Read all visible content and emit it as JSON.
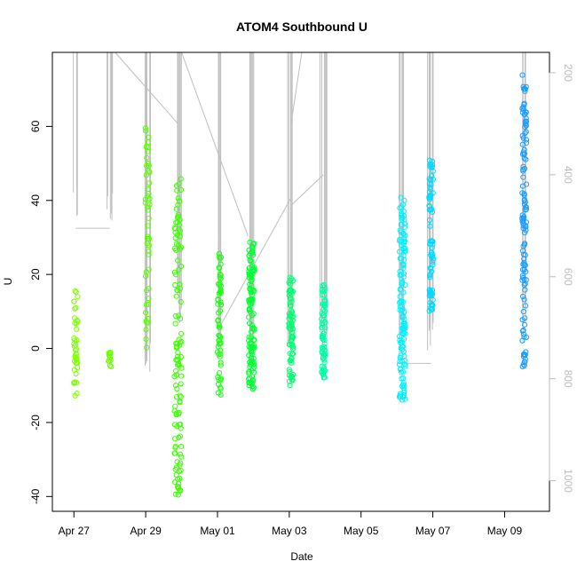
{
  "chart_data": {
    "type": "scatter",
    "title": "ATOM4 Southbound U",
    "xlabel": "Date",
    "ylabel": "U",
    "right_axis_label": "",
    "x_ticks": [
      "Apr 27",
      "Apr 29",
      "May 01",
      "May 03",
      "May 05",
      "May 07",
      "May 09"
    ],
    "x_tick_day_index": [
      0,
      2,
      4,
      6,
      8,
      10,
      12
    ],
    "y_ticks": [
      -40,
      -20,
      0,
      20,
      40,
      60
    ],
    "right_ticks": [
      200,
      400,
      600,
      800,
      1000
    ],
    "xlim_day_index": [
      -0.6,
      13.25
    ],
    "ylim": [
      -44,
      80
    ],
    "right_ylim": [
      160,
      1060
    ],
    "grid": false,
    "colors": {
      "line": "#bfbfbf",
      "axis": "#000000",
      "right_axis": "#bdbdbd"
    },
    "clusters": [
      {
        "day_index": 0.05,
        "spread": 0.06,
        "ymin": -13,
        "ymax": 16,
        "n": 40,
        "color": "#7fff00"
      },
      {
        "day_index": 1.0,
        "spread": 0.04,
        "ymin": -5,
        "ymax": -1,
        "n": 12,
        "color": "#6cff00"
      },
      {
        "day_index": 2.05,
        "spread": 0.06,
        "ymin": 0,
        "ymax": 60,
        "n": 50,
        "color": "#58ff00"
      },
      {
        "day_index": 2.9,
        "spread": 0.1,
        "ymin": -40,
        "ymax": 46,
        "n": 120,
        "color": "#3aff00"
      },
      {
        "day_index": 4.05,
        "spread": 0.05,
        "ymin": -13,
        "ymax": 26,
        "n": 60,
        "color": "#18ff10"
      },
      {
        "day_index": 4.95,
        "spread": 0.08,
        "ymin": -11,
        "ymax": 30,
        "n": 120,
        "color": "#00ff30"
      },
      {
        "day_index": 6.05,
        "spread": 0.06,
        "ymin": -10,
        "ymax": 20,
        "n": 80,
        "color": "#00ff70"
      },
      {
        "day_index": 6.95,
        "spread": 0.05,
        "ymin": -8,
        "ymax": 18,
        "n": 70,
        "color": "#00ffa0"
      },
      {
        "day_index": 9.15,
        "spread": 0.08,
        "ymin": -14,
        "ymax": 41,
        "n": 130,
        "color": "#00f0ff"
      },
      {
        "day_index": 9.95,
        "spread": 0.06,
        "ymin": 10,
        "ymax": 51,
        "n": 80,
        "color": "#00d8ff"
      },
      {
        "day_index": 12.55,
        "spread": 0.06,
        "ymin": -5,
        "ymax": 75,
        "n": 120,
        "color": "#1a9cff"
      }
    ],
    "depth_line_segments": [
      {
        "day_index": 0.05,
        "depth_min": 160,
        "depth_max": 505
      },
      {
        "day_index": 1.0,
        "depth_min": 160,
        "depth_max": 505
      },
      {
        "day_index": 2.05,
        "depth_min": 160,
        "depth_max": 800
      },
      {
        "day_index": 2.9,
        "depth_min": 160,
        "depth_max": 700
      },
      {
        "day_index": 4.05,
        "depth_min": 160,
        "depth_max": 740
      },
      {
        "day_index": 4.95,
        "depth_min": 160,
        "depth_max": 760
      },
      {
        "day_index": 6.05,
        "depth_min": 160,
        "depth_max": 770
      },
      {
        "day_index": 6.95,
        "depth_min": 160,
        "depth_max": 760
      },
      {
        "day_index": 9.15,
        "depth_min": 160,
        "depth_max": 770
      },
      {
        "day_index": 9.95,
        "depth_min": 160,
        "depth_max": 770
      },
      {
        "day_index": 12.55,
        "depth_min": 160,
        "depth_max": 730
      }
    ],
    "depth_connectors": [
      [
        [
          0.05,
          505
        ],
        [
          1.0,
          505
        ]
      ],
      [
        [
          1.15,
          160
        ],
        [
          2.9,
          300
        ]
      ],
      [
        [
          3.0,
          160
        ],
        [
          4.85,
          520
        ]
      ],
      [
        [
          4.05,
          700
        ],
        [
          6.05,
          445
        ]
      ],
      [
        [
          6.05,
          460
        ],
        [
          6.95,
          400
        ]
      ],
      [
        [
          6.05,
          300
        ],
        [
          6.35,
          160
        ]
      ],
      [
        [
          9.05,
          770
        ],
        [
          9.95,
          770
        ]
      ]
    ]
  }
}
